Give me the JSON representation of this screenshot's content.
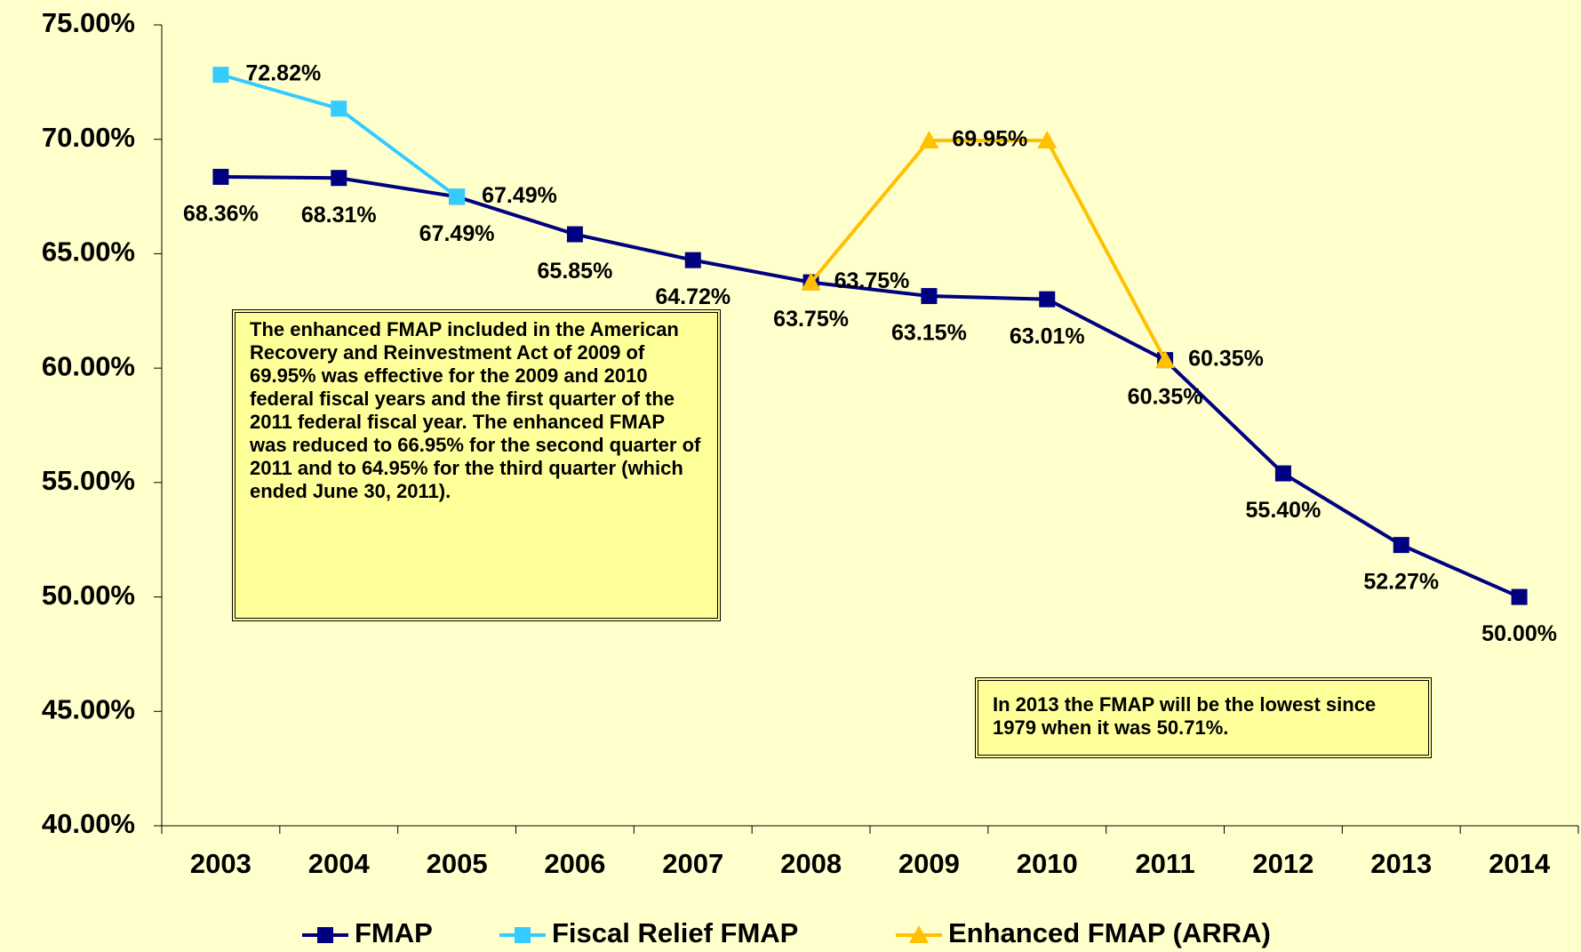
{
  "chart_data": {
    "type": "line",
    "categories": [
      "2003",
      "2004",
      "2005",
      "2006",
      "2007",
      "2008",
      "2009",
      "2010",
      "2011",
      "2012",
      "2013",
      "2014"
    ],
    "series": [
      {
        "name": "FMAP",
        "color": "#000080",
        "marker": "square",
        "values": [
          68.36,
          68.31,
          67.49,
          65.85,
          64.72,
          63.75,
          63.15,
          63.01,
          60.35,
          55.4,
          52.27,
          50.0
        ],
        "value_labels": [
          "68.36%",
          "68.31%",
          "67.49%",
          "65.85%",
          "64.72%",
          "63.75%",
          "63.15%",
          "63.01%",
          "60.35%",
          "55.40%",
          "52.27%",
          "50.00%"
        ]
      },
      {
        "name": "Fiscal Relief FMAP",
        "color": "#33ccff",
        "marker": "square",
        "values": [
          72.82,
          71.34,
          67.49,
          null,
          null,
          null,
          null,
          null,
          null,
          null,
          null,
          null
        ],
        "value_labels": [
          "72.82%",
          null,
          "67.49%",
          null,
          null,
          null,
          null,
          null,
          null,
          null,
          null,
          null
        ]
      },
      {
        "name": "Enhanced FMAP (ARRA)",
        "color": "#ffc000",
        "marker": "triangle",
        "values": [
          null,
          null,
          null,
          null,
          null,
          63.75,
          69.95,
          69.95,
          60.35,
          null,
          null,
          null
        ],
        "value_labels": [
          null,
          null,
          null,
          null,
          null,
          "63.75%",
          "69.95%",
          null,
          "60.35%",
          null,
          null,
          null
        ]
      }
    ],
    "ylim": [
      40,
      75
    ],
    "yticks": [
      {
        "value": 40,
        "label": "40.00%"
      },
      {
        "value": 45,
        "label": "45.00%"
      },
      {
        "value": 50,
        "label": "50.00%"
      },
      {
        "value": 55,
        "label": "55.00%"
      },
      {
        "value": 60,
        "label": "60.00%"
      },
      {
        "value": 65,
        "label": "65.00%"
      },
      {
        "value": 70,
        "label": "70.00%"
      },
      {
        "value": 75,
        "label": "75.00%"
      }
    ],
    "annotations": [
      "The enhanced FMAP included in the American Recovery and Reinvestment Act of 2009 of 69.95% was effective for the 2009 and 2010 federal fiscal years and the first quarter of the 2011 federal fiscal year.  The enhanced FMAP was reduced to 66.95% for the second quarter of 2011 and to 64.95% for the third quarter (which ended June 30, 2011).",
      "In 2013 the FMAP will be the lowest since 1979 when it was 50.71%."
    ],
    "legend": "bottom",
    "background": "#ffffcc"
  }
}
